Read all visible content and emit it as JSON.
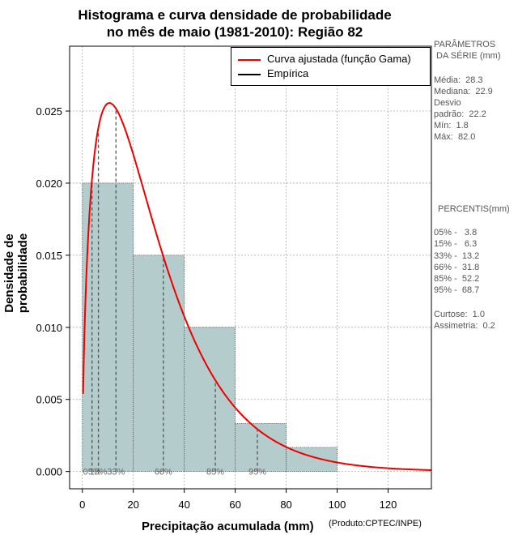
{
  "title_line1": "Histograma e curva densidade de probabilidade",
  "title_line2": "no mês de maio (1981-2010): Região 82",
  "parametros": {
    "heading1": "PARÂMETROS",
    "heading2": " DA SÉRIE (mm)",
    "media": "Média:  28.3",
    "mediana": "Mediana:  22.9",
    "desvio1": "Desvio",
    "desvio2": "padrão:  22.2",
    "min": "Mín:  1.8",
    "max": "Máx:  82.0"
  },
  "percentis": {
    "heading": " PERCENTIS(mm)",
    "rows": [
      "05% -   3.8",
      "15% -   6.3",
      "33% -  13.2",
      "66% -  31.8",
      "85% -  52.2",
      "95% -  68.7"
    ],
    "curtose": "Curtose:  1.0",
    "assimetria": "Assimetria:  0.2"
  },
  "legend": {
    "curve": "Curva ajustada (função Gama)",
    "empirical": "Empírica"
  },
  "xlabel": "Precipitação acumulada (mm)",
  "credit": "(Produto:CPTEC/INPE)",
  "ylabel": "Densidade de probabilidade",
  "colors": {
    "bar": "#b4cccc",
    "curve": "#ee0000",
    "grid": "#aaaaaa"
  },
  "chart_data": {
    "type": "bar",
    "title": "Histograma e curva densidade de probabilidade no mês de maio (1981-2010): Região 82",
    "xlabel": "Precipitação acumulada (mm)",
    "ylabel": "Densidade de probabilidade",
    "xlim": [
      -5,
      137
    ],
    "ylim": [
      -0.0012,
      0.0295
    ],
    "x_ticks": [
      0,
      20,
      40,
      60,
      80,
      100,
      120
    ],
    "x_tick_labels": [
      "0",
      "20",
      "40",
      "60",
      "80",
      "100",
      "120"
    ],
    "y_ticks": [
      0.0,
      0.005,
      0.01,
      0.015,
      0.02,
      0.025
    ],
    "y_tick_labels": [
      "0.000",
      "0.005",
      "0.010",
      "0.015",
      "0.020",
      "0.025"
    ],
    "bins": [
      {
        "from": 0,
        "to": 20,
        "density": 0.02
      },
      {
        "from": 20,
        "to": 40,
        "density": 0.015
      },
      {
        "from": 40,
        "to": 60,
        "density": 0.01
      },
      {
        "from": 60,
        "to": 80,
        "density": 0.00333
      },
      {
        "from": 80,
        "to": 100,
        "density": 0.00167
      }
    ],
    "gamma_fit": {
      "shape": 1.6,
      "mean": 28.3,
      "x_max": 137
    },
    "percentile_lines": [
      {
        "label": "05%",
        "x": 3.8
      },
      {
        "label": "15%",
        "x": 6.3
      },
      {
        "label": "33%",
        "x": 13.2
      },
      {
        "label": "66%",
        "x": 31.8
      },
      {
        "label": "85%",
        "x": 52.2
      },
      {
        "label": "95%",
        "x": 68.7
      }
    ],
    "legend": [
      "Curva ajustada (função Gama)",
      "Empírica"
    ]
  }
}
